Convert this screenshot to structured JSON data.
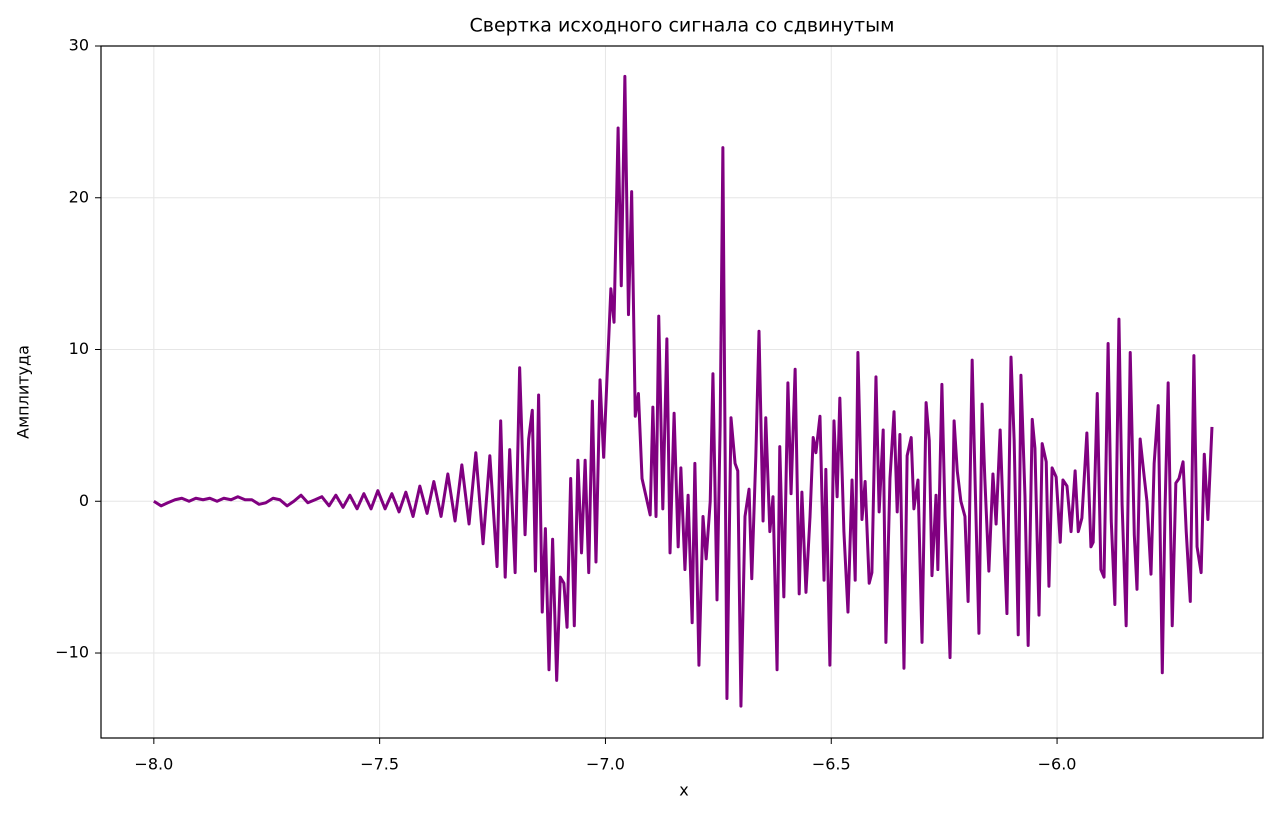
{
  "chart_data": {
    "type": "line",
    "title": "Свертка исходного сигнала со сдвинутым",
    "xlabel": "x",
    "ylabel": "Амплитуда",
    "color": "#800080",
    "grid": true,
    "xlim": [
      -8.117,
      -5.544
    ],
    "ylim": [
      -15.6,
      30
    ],
    "xticks": [
      {
        "value": -8.0,
        "label": "−8.0"
      },
      {
        "value": -7.5,
        "label": "−7.5"
      },
      {
        "value": -7.0,
        "label": "−7.0"
      },
      {
        "value": -6.5,
        "label": "−6.5"
      },
      {
        "value": -6.0,
        "label": "−6.0"
      }
    ],
    "yticks": [
      {
        "value": -10,
        "label": "−10"
      },
      0,
      10,
      20,
      30
    ],
    "x": [
      -8.0,
      -7.984,
      -7.969,
      -7.953,
      -7.938,
      -7.922,
      -7.907,
      -7.891,
      -7.876,
      -7.86,
      -7.845,
      -7.829,
      -7.814,
      -7.798,
      -7.783,
      -7.767,
      -7.752,
      -7.736,
      -7.721,
      -7.705,
      -7.69,
      -7.674,
      -7.659,
      -7.643,
      -7.628,
      -7.612,
      -7.597,
      -7.581,
      -7.566,
      -7.55,
      -7.535,
      -7.519,
      -7.504,
      -7.488,
      -7.473,
      -7.457,
      -7.442,
      -7.426,
      -7.411,
      -7.395,
      -7.38,
      -7.364,
      -7.349,
      -7.333,
      -7.318,
      -7.302,
      -7.287,
      -7.271,
      -7.256,
      -7.24,
      -7.232,
      -7.222,
      -7.212,
      -7.2,
      -7.19,
      -7.178,
      -7.17,
      -7.162,
      -7.155,
      -7.148,
      -7.14,
      -7.133,
      -7.125,
      -7.117,
      -7.108,
      -7.1,
      -7.092,
      -7.085,
      -7.077,
      -7.069,
      -7.061,
      -7.053,
      -7.045,
      -7.037,
      -7.029,
      -7.021,
      -7.012,
      -7.004,
      -6.996,
      -6.988,
      -6.981,
      -6.972,
      -6.965,
      -6.957,
      -6.949,
      -6.942,
      -6.934,
      -6.927,
      -6.919,
      -6.901,
      -6.895,
      -6.888,
      -6.882,
      -6.873,
      -6.864,
      -6.857,
      -6.848,
      -6.839,
      -6.833,
      -6.824,
      -6.817,
      -6.808,
      -6.802,
      -6.793,
      -6.784,
      -6.777,
      -6.768,
      -6.762,
      -6.753,
      -6.746,
      -6.74,
      -6.731,
      -6.722,
      -6.713,
      -6.707,
      -6.7,
      -6.691,
      -6.682,
      -6.676,
      -6.667,
      -6.66,
      -6.651,
      -6.645,
      -6.636,
      -6.629,
      -6.62,
      -6.614,
      -6.605,
      -6.596,
      -6.589,
      -6.58,
      -6.571,
      -6.565,
      -6.556,
      -6.547,
      -6.54,
      -6.534,
      -6.525,
      -6.516,
      -6.512,
      -6.503,
      -6.494,
      -6.487,
      -6.481,
      -6.472,
      -6.463,
      -6.454,
      -6.447,
      -6.441,
      -6.432,
      -6.425,
      -6.416,
      -6.41,
      -6.401,
      -6.394,
      -6.385,
      -6.379,
      -6.37,
      -6.361,
      -6.354,
      -6.348,
      -6.339,
      -6.332,
      -6.323,
      -6.317,
      -6.308,
      -6.299,
      -6.29,
      -6.283,
      -6.277,
      -6.268,
      -6.264,
      -6.255,
      -6.248,
      -6.237,
      -6.228,
      -6.221,
      -6.213,
      -6.204,
      -6.197,
      -6.188,
      -6.182,
      -6.173,
      -6.166,
      -6.16,
      -6.151,
      -6.142,
      -6.135,
      -6.126,
      -6.117,
      -6.111,
      -6.102,
      -6.095,
      -6.086,
      -6.08,
      -6.071,
      -6.064,
      -6.055,
      -6.049,
      -6.04,
      -6.033,
      -6.024,
      -6.018,
      -6.011,
      -6.002,
      -5.993,
      -5.987,
      -5.978,
      -5.969,
      -5.96,
      -5.953,
      -5.945,
      -5.934,
      -5.925,
      -5.92,
      -5.911,
      -5.903,
      -5.896,
      -5.887,
      -5.88,
      -5.872,
      -5.863,
      -5.856,
      -5.847,
      -5.838,
      -5.829,
      -5.823,
      -5.816,
      -5.807,
      -5.801,
      -5.792,
      -5.785,
      -5.776,
      -5.767,
      -5.761,
      -5.754,
      -5.745,
      -5.737,
      -5.73,
      -5.721,
      -5.714,
      -5.705,
      -5.697,
      -5.69,
      -5.681,
      -5.674,
      -5.666,
      -5.657
    ],
    "values": [
      0,
      -0.3,
      -0.1,
      0.1,
      0.2,
      0,
      0.2,
      0.1,
      0.2,
      0,
      0.2,
      0.1,
      0.3,
      0.1,
      0.1,
      -0.2,
      -0.1,
      0.2,
      0.1,
      -0.3,
      0,
      0.4,
      -0.1,
      0.1,
      0.3,
      -0.3,
      0.4,
      -0.4,
      0.4,
      -0.5,
      0.5,
      -0.5,
      0.7,
      -0.5,
      0.5,
      -0.7,
      0.6,
      -1,
      1,
      -0.8,
      1.3,
      -1,
      1.8,
      -1.3,
      2.4,
      -1.5,
      3.2,
      -2.8,
      3,
      -4.3,
      5.3,
      -5,
      3.4,
      -4.7,
      8.8,
      -2.2,
      4.1,
      6,
      -4.6,
      7,
      -7.3,
      -1.8,
      -11.1,
      -2.5,
      -11.8,
      -5,
      -5.4,
      -8.3,
      1.5,
      -8.2,
      2.7,
      -3.4,
      2.7,
      -4.7,
      6.6,
      -4,
      8,
      2.9,
      8.5,
      14,
      11.8,
      24.6,
      14.2,
      28,
      12.3,
      20.4,
      5.6,
      7.1,
      1.5,
      -0.9,
      6.2,
      -1,
      12.2,
      -0.5,
      10.7,
      -3.4,
      5.8,
      -3,
      2.2,
      -4.5,
      0.4,
      -8,
      2.5,
      -10.8,
      -1,
      -3.8,
      0,
      8.4,
      -6.5,
      5,
      23.3,
      -13,
      5.5,
      2.5,
      2,
      -13.5,
      -1,
      0.8,
      -5.1,
      3,
      11.2,
      -1.3,
      5.5,
      -2,
      0.3,
      -11.1,
      3.6,
      -6.3,
      7.8,
      0.5,
      8.7,
      -6.1,
      0.6,
      -6,
      -1,
      4.2,
      3.2,
      5.6,
      -5.2,
      2.1,
      -10.8,
      5.3,
      0.3,
      6.8,
      -2,
      -7.3,
      1.4,
      -5.2,
      9.8,
      -1.2,
      1.3,
      -5.4,
      -4.7,
      8.2,
      -0.7,
      4.7,
      -9.3,
      1.5,
      5.9,
      -0.7,
      4.4,
      -11,
      3,
      4.2,
      -0.5,
      1.4,
      -9.3,
      6.5,
      4,
      -4.9,
      0.4,
      -4.5,
      7.7,
      -1,
      -10.3,
      5.3,
      2,
      0,
      -1,
      -6.6,
      9.3,
      1.9,
      -8.7,
      6.4,
      1.5,
      -4.6,
      1.8,
      -1.5,
      4.7,
      -2.8,
      -7.4,
      9.5,
      4,
      -8.8,
      8.3,
      0.3,
      -9.5,
      5.4,
      3.5,
      -7.5,
      3.8,
      2.6,
      -5.6,
      2.2,
      1.6,
      -2.7,
      1.4,
      1,
      -2,
      2,
      -2,
      -1.1,
      4.5,
      -3,
      -2.7,
      7.1,
      -4.5,
      -5,
      10.4,
      -1.3,
      -6.8,
      12,
      -0.2,
      -8.2,
      9.8,
      -2.2,
      -5.8,
      4.1,
      1.6,
      0,
      -4.8,
      2.5,
      6.3,
      -11.3,
      -0.6,
      7.8,
      -8.2,
      1.2,
      1.5,
      2.6,
      -2,
      -6.6,
      9.6,
      -3,
      -4.7,
      3.1,
      -1.2,
      4.9
    ]
  }
}
